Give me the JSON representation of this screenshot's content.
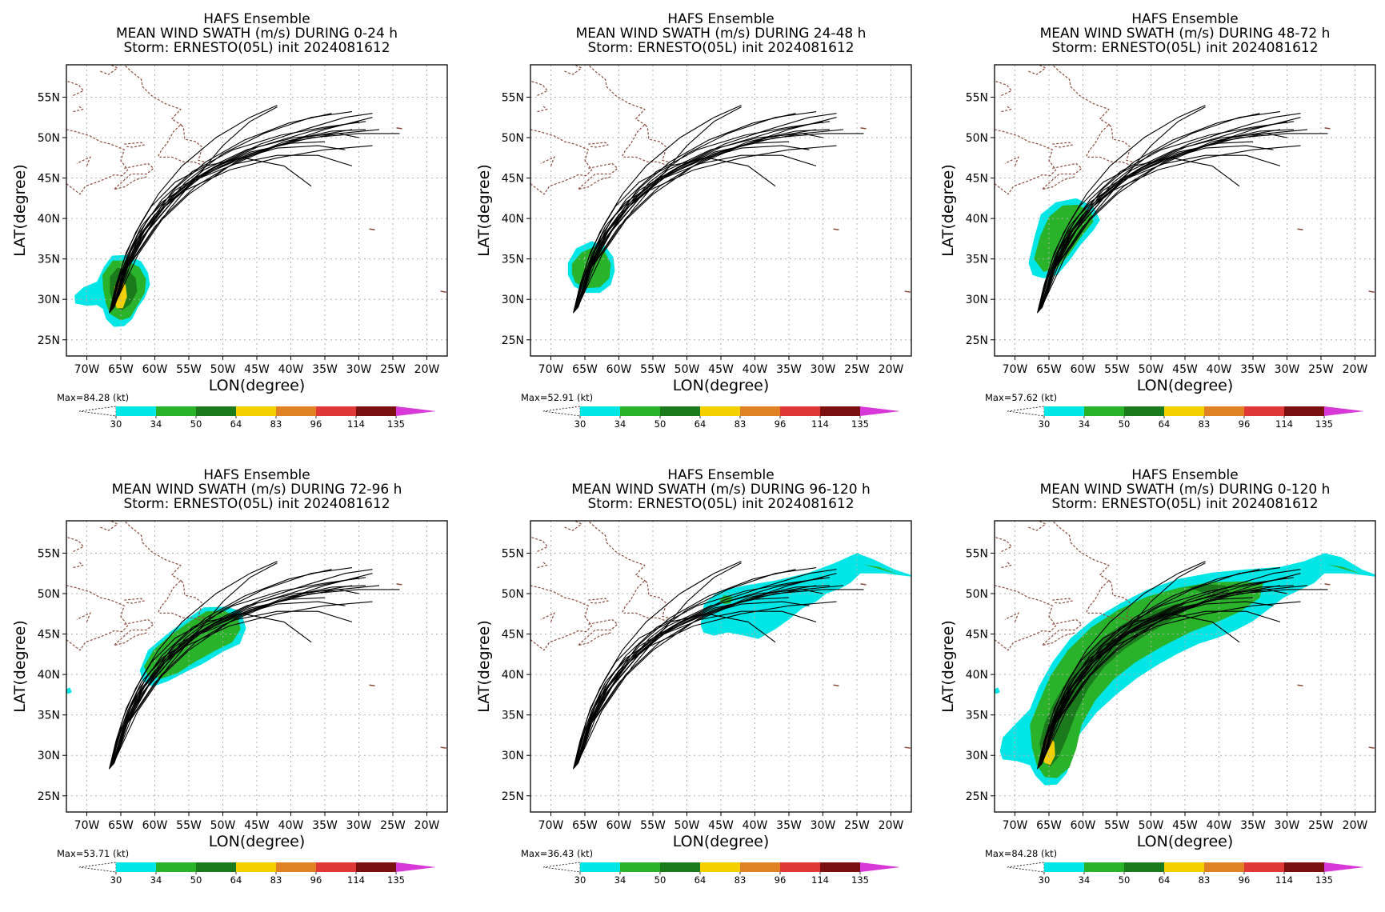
{
  "panels": [
    {
      "title_lines": [
        "HAFS Ensemble",
        "MEAN WIND SWATH (m/s) DURING  0-24 h",
        "Storm: ERNESTO(05L) init 2024081612"
      ],
      "max_label": "Max=84.28 (kt)",
      "swath": "p0"
    },
    {
      "title_lines": [
        "HAFS Ensemble",
        "MEAN WIND SWATH (m/s) DURING 24-48 h",
        "Storm: ERNESTO(05L) init 2024081612"
      ],
      "max_label": "Max=52.91 (kt)",
      "swath": "p1"
    },
    {
      "title_lines": [
        "HAFS Ensemble",
        "MEAN WIND SWATH (m/s) DURING 48-72 h",
        "Storm: ERNESTO(05L) init 2024081612"
      ],
      "max_label": "Max=57.62 (kt)",
      "swath": "p2"
    },
    {
      "title_lines": [
        "HAFS Ensemble",
        "MEAN WIND SWATH (m/s) DURING 72-96 h",
        "Storm: ERNESTO(05L) init 2024081612"
      ],
      "max_label": "Max=53.71 (kt)",
      "swath": "p3"
    },
    {
      "title_lines": [
        "HAFS Ensemble",
        "MEAN WIND SWATH (m/s) DURING 96-120 h",
        "Storm: ERNESTO(05L) init 2024081612"
      ],
      "max_label": "Max=36.43 (kt)",
      "swath": "p4"
    },
    {
      "title_lines": [
        "HAFS Ensemble",
        "MEAN WIND SWATH (m/s) DURING 0-120 h",
        "Storm: ERNESTO(05L) init 2024081612"
      ],
      "max_label": "Max=84.28 (kt)",
      "swath": "p5"
    }
  ],
  "axes": {
    "xlabel": "LON(degree)",
    "ylabel": "LAT(degree)",
    "x_ticks": [
      "70W",
      "65W",
      "60W",
      "55W",
      "50W",
      "45W",
      "40W",
      "35W",
      "30W",
      "25W",
      "20W"
    ],
    "x_tick_values": [
      -70,
      -65,
      -60,
      -55,
      -50,
      -45,
      -40,
      -35,
      -30,
      -25,
      -20
    ],
    "y_ticks": [
      "25N",
      "30N",
      "35N",
      "40N",
      "45N",
      "50N",
      "55N"
    ],
    "y_tick_values": [
      25,
      30,
      35,
      40,
      45,
      50,
      55
    ],
    "lon_range": [
      -73,
      -17
    ],
    "lat_range": [
      23,
      59
    ]
  },
  "colorbar": {
    "levels": [
      "30",
      "34",
      "50",
      "64",
      "83",
      "96",
      "114",
      "135"
    ],
    "colors": [
      "#00e6e6",
      "#2ab22a",
      "#1b7a1b",
      "#f5d000",
      "#e08224",
      "#e03838",
      "#7a1010",
      "#d838d8"
    ]
  },
  "colors": {
    "coast": "#8b4a3a",
    "track": "#000000",
    "grid": "#b0b0b0"
  }
}
